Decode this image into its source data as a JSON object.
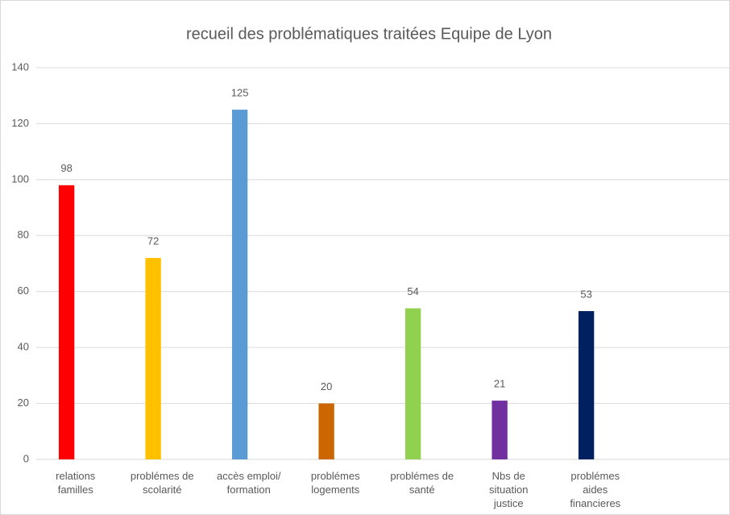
{
  "chart_data": {
    "type": "bar",
    "title": "recueil des problématiques traitées Equipe de Lyon",
    "categories": [
      "relations familles",
      "problémes de scolarité",
      "accès emploi/ formation",
      "problémes logements",
      "problémes de santé",
      "Nbs de situation justice",
      "problémes aides financieres",
      null
    ],
    "values": [
      98,
      72,
      125,
      20,
      54,
      21,
      53,
      null
    ],
    "colors": [
      "#ff0000",
      "#ffc000",
      "#5b9bd5",
      "#cc6600",
      "#92d050",
      "#7030a0",
      "#002060",
      null
    ],
    "ylim": [
      0,
      140
    ],
    "yticks": [
      0,
      20,
      40,
      60,
      80,
      100,
      120,
      140
    ],
    "grid": true
  }
}
